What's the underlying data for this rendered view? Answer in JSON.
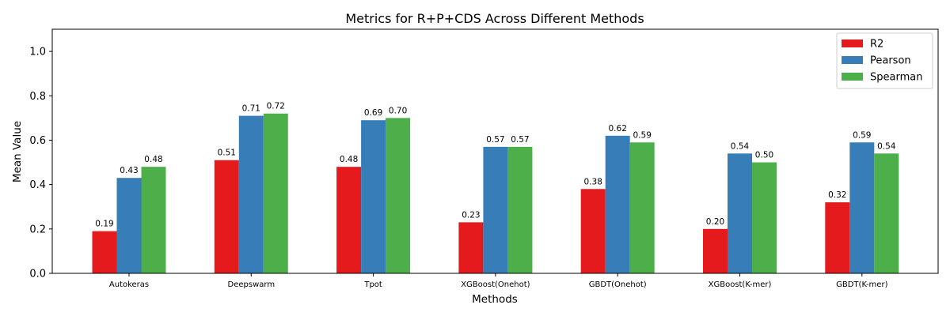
{
  "chart_data": {
    "type": "bar",
    "title": "Metrics for R+P+CDS Across Different Methods",
    "xlabel": "Methods",
    "ylabel": "Mean Value",
    "ylim": [
      0,
      1.1
    ],
    "yticks": [
      "0.0",
      "0.2",
      "0.4",
      "0.6",
      "0.8",
      "1.0"
    ],
    "grid": false,
    "legend_position": "top-right",
    "categories": [
      "Autokeras",
      "Deepswarm",
      "Tpot",
      "XGBoost(Onehot)",
      "GBDT(Onehot)",
      "XGBoost(K-mer)",
      "GBDT(K-mer)"
    ],
    "series": [
      {
        "name": "R2",
        "color": "#e41a1c",
        "values": [
          0.19,
          0.51,
          0.48,
          0.23,
          0.38,
          0.2,
          0.32
        ],
        "labels": [
          "0.19",
          "0.51",
          "0.48",
          "0.23",
          "0.38",
          "0.20",
          "0.32"
        ]
      },
      {
        "name": "Pearson",
        "color": "#377eb8",
        "values": [
          0.43,
          0.71,
          0.69,
          0.57,
          0.62,
          0.54,
          0.59
        ],
        "labels": [
          "0.43",
          "0.71",
          "0.69",
          "0.57",
          "0.62",
          "0.54",
          "0.59"
        ]
      },
      {
        "name": "Spearman",
        "color": "#4daf4a",
        "values": [
          0.48,
          0.72,
          0.7,
          0.57,
          0.59,
          0.5,
          0.54
        ],
        "labels": [
          "0.48",
          "0.72",
          "0.70",
          "0.57",
          "0.59",
          "0.50",
          "0.54"
        ]
      }
    ]
  }
}
